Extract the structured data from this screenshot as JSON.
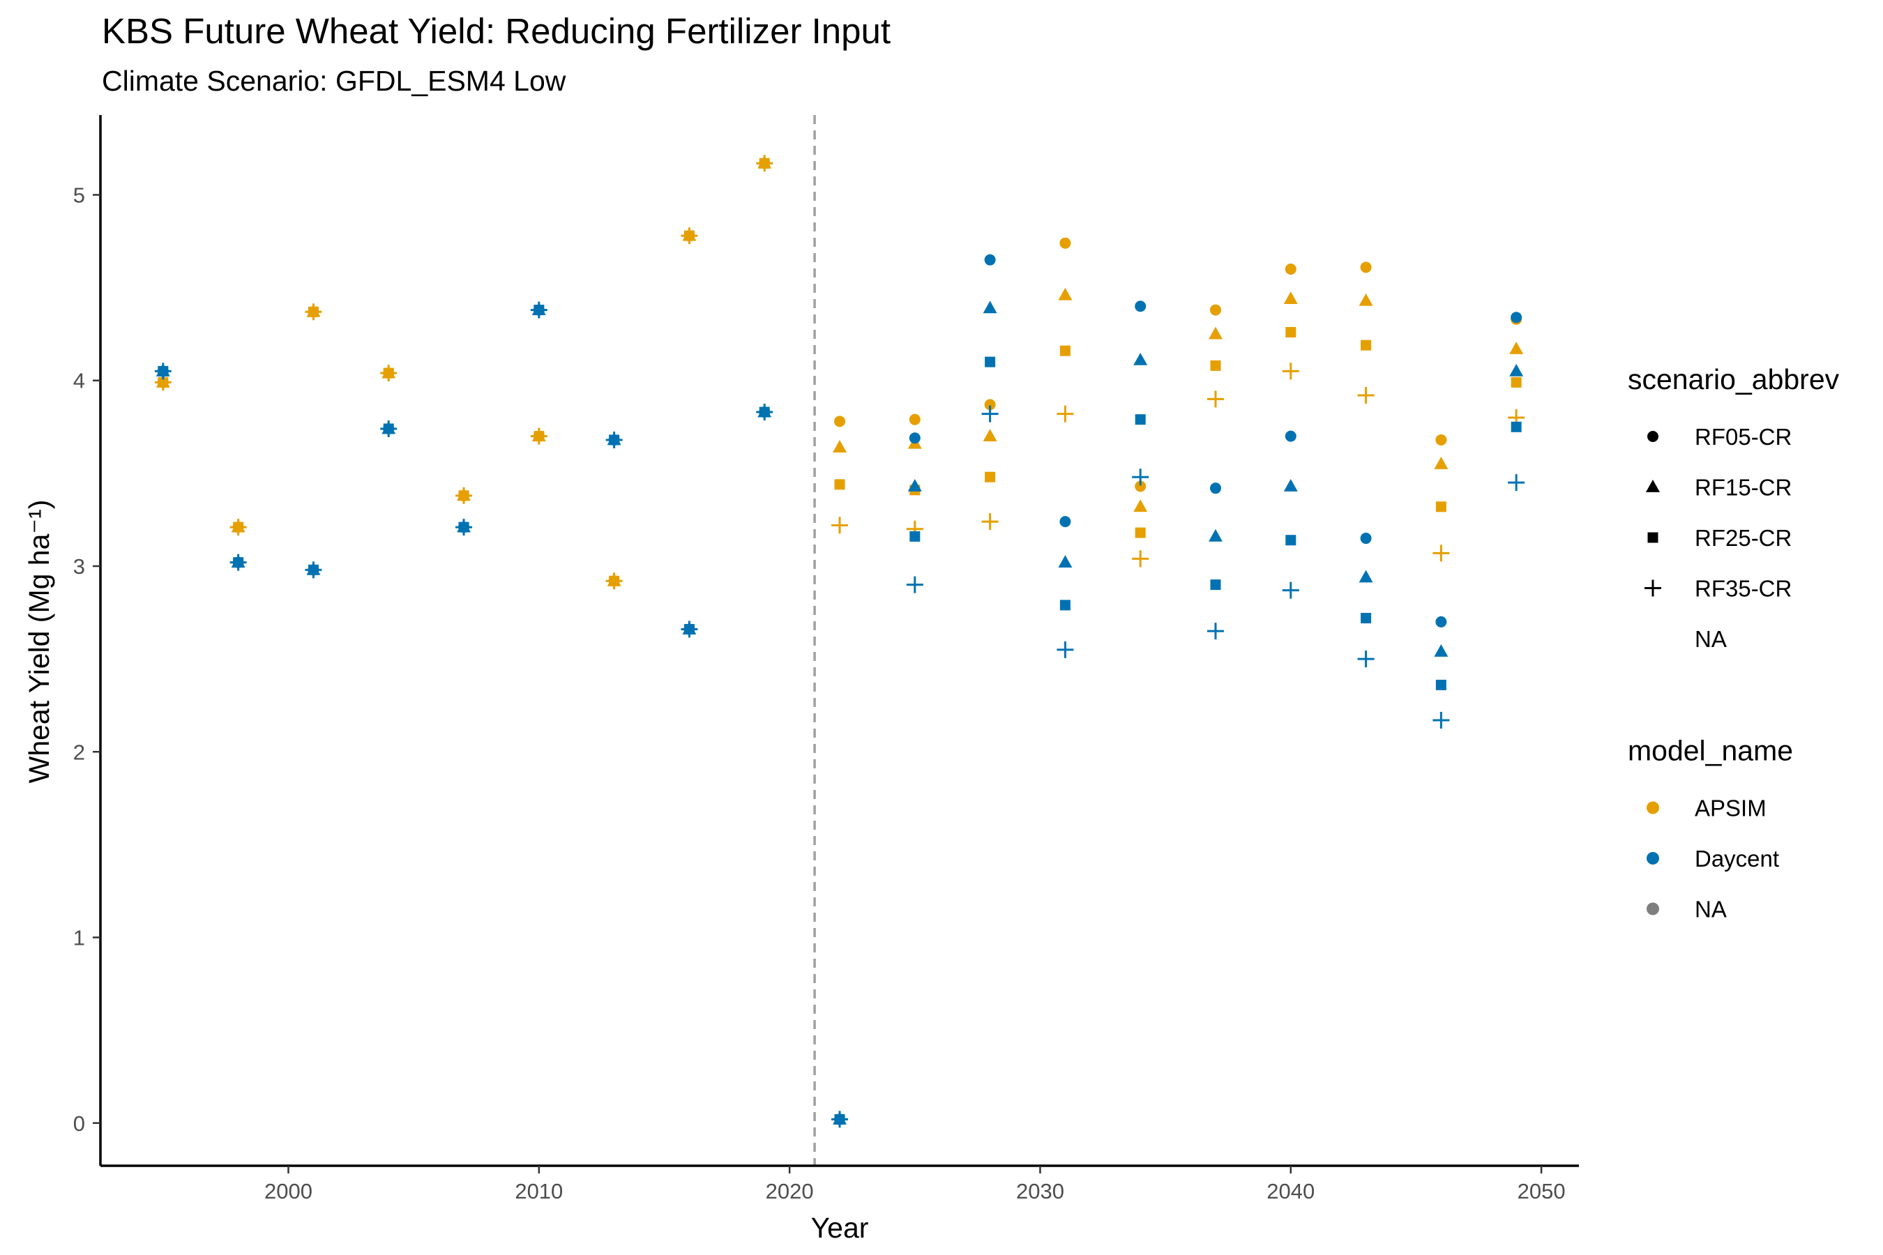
{
  "chart_data": {
    "type": "scatter",
    "title": "KBS Future Wheat Yield: Reducing Fertilizer Input",
    "subtitle": "Climate Scenario: GFDL_ESM4 Low",
    "xlabel": "Year",
    "ylabel": "Wheat Yield (Mg ha⁻¹)",
    "xlim": [
      1992.5,
      2051.5
    ],
    "ylim": [
      -0.23,
      5.43
    ],
    "x_ticks": [
      2000,
      2010,
      2020,
      2030,
      2040,
      2050
    ],
    "y_ticks": [
      0,
      1,
      2,
      3,
      4,
      5
    ],
    "vline": {
      "x": 2021,
      "style": "dashed",
      "color": "#a0a0a0"
    },
    "grid": false,
    "colors": {
      "APSIM": "#E69F00",
      "Daycent": "#0072B2",
      "NA": "#7f7f7f"
    },
    "series": [
      {
        "name": "APSIM",
        "color": "#E69F00",
        "historical": [
          {
            "x": 1995,
            "y": 3.99
          },
          {
            "x": 1998,
            "y": 3.21
          },
          {
            "x": 2001,
            "y": 4.37
          },
          {
            "x": 2004,
            "y": 4.04
          },
          {
            "x": 2007,
            "y": 3.38
          },
          {
            "x": 2010,
            "y": 3.7
          },
          {
            "x": 2013,
            "y": 2.92
          },
          {
            "x": 2016,
            "y": 4.78
          },
          {
            "x": 2019,
            "y": 5.17
          }
        ],
        "scenarios": {
          "RF05-CR": [
            {
              "x": 2022,
              "y": 3.78
            },
            {
              "x": 2025,
              "y": 3.79
            },
            {
              "x": 2028,
              "y": 3.87
            },
            {
              "x": 2031,
              "y": 4.74
            },
            {
              "x": 2034,
              "y": 3.43
            },
            {
              "x": 2037,
              "y": 4.38
            },
            {
              "x": 2040,
              "y": 4.6
            },
            {
              "x": 2043,
              "y": 4.61
            },
            {
              "x": 2046,
              "y": 3.68
            },
            {
              "x": 2049,
              "y": 4.33
            }
          ],
          "RF15-CR": [
            {
              "x": 2022,
              "y": 3.64
            },
            {
              "x": 2025,
              "y": 3.66
            },
            {
              "x": 2028,
              "y": 3.7
            },
            {
              "x": 2031,
              "y": 4.46
            },
            {
              "x": 2034,
              "y": 3.32
            },
            {
              "x": 2037,
              "y": 4.25
            },
            {
              "x": 2040,
              "y": 4.44
            },
            {
              "x": 2043,
              "y": 4.43
            },
            {
              "x": 2046,
              "y": 3.55
            },
            {
              "x": 2049,
              "y": 4.17
            }
          ],
          "RF25-CR": [
            {
              "x": 2022,
              "y": 3.44
            },
            {
              "x": 2025,
              "y": 3.41
            },
            {
              "x": 2028,
              "y": 3.48
            },
            {
              "x": 2031,
              "y": 4.16
            },
            {
              "x": 2034,
              "y": 3.18
            },
            {
              "x": 2037,
              "y": 4.08
            },
            {
              "x": 2040,
              "y": 4.26
            },
            {
              "x": 2043,
              "y": 4.19
            },
            {
              "x": 2046,
              "y": 3.32
            },
            {
              "x": 2049,
              "y": 3.99
            }
          ],
          "RF35-CR": [
            {
              "x": 2022,
              "y": 3.22
            },
            {
              "x": 2025,
              "y": 3.2
            },
            {
              "x": 2028,
              "y": 3.24
            },
            {
              "x": 2031,
              "y": 3.82
            },
            {
              "x": 2034,
              "y": 3.04
            },
            {
              "x": 2037,
              "y": 3.9
            },
            {
              "x": 2040,
              "y": 4.05
            },
            {
              "x": 2043,
              "y": 3.92
            },
            {
              "x": 2046,
              "y": 3.07
            },
            {
              "x": 2049,
              "y": 3.8
            }
          ]
        }
      },
      {
        "name": "Daycent",
        "color": "#0072B2",
        "historical": [
          {
            "x": 1995,
            "y": 4.05
          },
          {
            "x": 1998,
            "y": 3.02
          },
          {
            "x": 2001,
            "y": 2.98
          },
          {
            "x": 2004,
            "y": 3.74
          },
          {
            "x": 2007,
            "y": 3.21
          },
          {
            "x": 2010,
            "y": 4.38
          },
          {
            "x": 2013,
            "y": 3.68
          },
          {
            "x": 2016,
            "y": 2.66
          },
          {
            "x": 2019,
            "y": 3.83
          },
          {
            "x": 2022,
            "y": 0.02
          }
        ],
        "scenarios": {
          "RF05-CR": [
            {
              "x": 2025,
              "y": 3.69
            },
            {
              "x": 2028,
              "y": 4.65
            },
            {
              "x": 2031,
              "y": 3.24
            },
            {
              "x": 2034,
              "y": 4.4
            },
            {
              "x": 2037,
              "y": 3.42
            },
            {
              "x": 2040,
              "y": 3.7
            },
            {
              "x": 2043,
              "y": 3.15
            },
            {
              "x": 2046,
              "y": 2.7
            },
            {
              "x": 2049,
              "y": 4.34
            }
          ],
          "RF15-CR": [
            {
              "x": 2025,
              "y": 3.43
            },
            {
              "x": 2028,
              "y": 4.39
            },
            {
              "x": 2031,
              "y": 3.02
            },
            {
              "x": 2034,
              "y": 4.11
            },
            {
              "x": 2037,
              "y": 3.16
            },
            {
              "x": 2040,
              "y": 3.43
            },
            {
              "x": 2043,
              "y": 2.94
            },
            {
              "x": 2046,
              "y": 2.54
            },
            {
              "x": 2049,
              "y": 4.05
            }
          ],
          "RF25-CR": [
            {
              "x": 2025,
              "y": 3.16
            },
            {
              "x": 2028,
              "y": 4.1
            },
            {
              "x": 2031,
              "y": 2.79
            },
            {
              "x": 2034,
              "y": 3.79
            },
            {
              "x": 2037,
              "y": 2.9
            },
            {
              "x": 2040,
              "y": 3.14
            },
            {
              "x": 2043,
              "y": 2.72
            },
            {
              "x": 2046,
              "y": 2.36
            },
            {
              "x": 2049,
              "y": 3.75
            }
          ],
          "RF35-CR": [
            {
              "x": 2025,
              "y": 2.9
            },
            {
              "x": 2028,
              "y": 3.82
            },
            {
              "x": 2031,
              "y": 2.55
            },
            {
              "x": 2034,
              "y": 3.48
            },
            {
              "x": 2037,
              "y": 2.65
            },
            {
              "x": 2040,
              "y": 2.87
            },
            {
              "x": 2043,
              "y": 2.5
            },
            {
              "x": 2046,
              "y": 2.17
            },
            {
              "x": 2049,
              "y": 3.45
            }
          ]
        }
      }
    ],
    "legends": [
      {
        "title": "scenario_abbrev",
        "entries": [
          {
            "label": "RF05-CR",
            "shape": "circle"
          },
          {
            "label": "RF15-CR",
            "shape": "triangle"
          },
          {
            "label": "RF25-CR",
            "shape": "square"
          },
          {
            "label": "RF35-CR",
            "shape": "plus"
          },
          {
            "label": "NA",
            "shape": "none"
          }
        ]
      },
      {
        "title": "model_name",
        "entries": [
          {
            "label": "APSIM",
            "color": "#E69F00"
          },
          {
            "label": "Daycent",
            "color": "#0072B2"
          },
          {
            "label": "NA",
            "color": "#7f7f7f"
          }
        ]
      }
    ]
  }
}
